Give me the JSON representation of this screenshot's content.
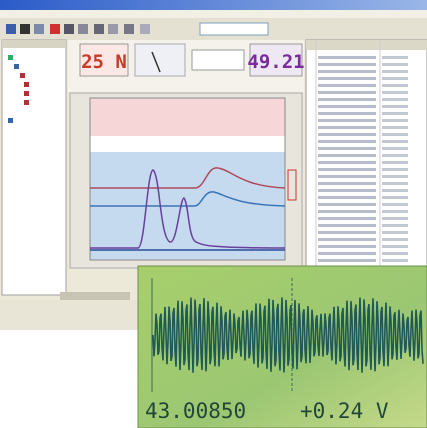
{
  "displays": {
    "force": "25 N",
    "counter": "49.21"
  },
  "scope": {
    "time": "43.00850",
    "voltage": "+0.24 V"
  }
}
